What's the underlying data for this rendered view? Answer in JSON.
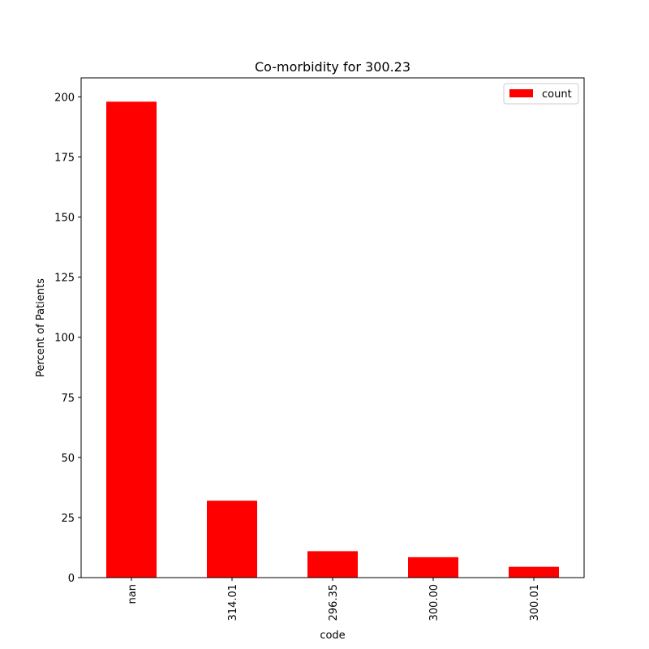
{
  "chart_data": {
    "type": "bar",
    "title": "Co-morbidity for 300.23",
    "xlabel": "code",
    "ylabel": "Percent of Patients",
    "categories": [
      "nan",
      "314.01",
      "296.35",
      "300.00",
      "300.01"
    ],
    "series": [
      {
        "name": "count",
        "values": [
          198,
          32,
          11,
          8.5,
          4.5
        ],
        "color": "#ff0000"
      }
    ],
    "ylim": [
      0,
      207.9
    ],
    "yticks": [
      0,
      25,
      50,
      75,
      100,
      125,
      150,
      175,
      200
    ],
    "ytick_labels": [
      "0",
      "25",
      "50",
      "75",
      "100",
      "125",
      "150",
      "175",
      "200"
    ],
    "grid": false,
    "legend_position": "top-right"
  }
}
